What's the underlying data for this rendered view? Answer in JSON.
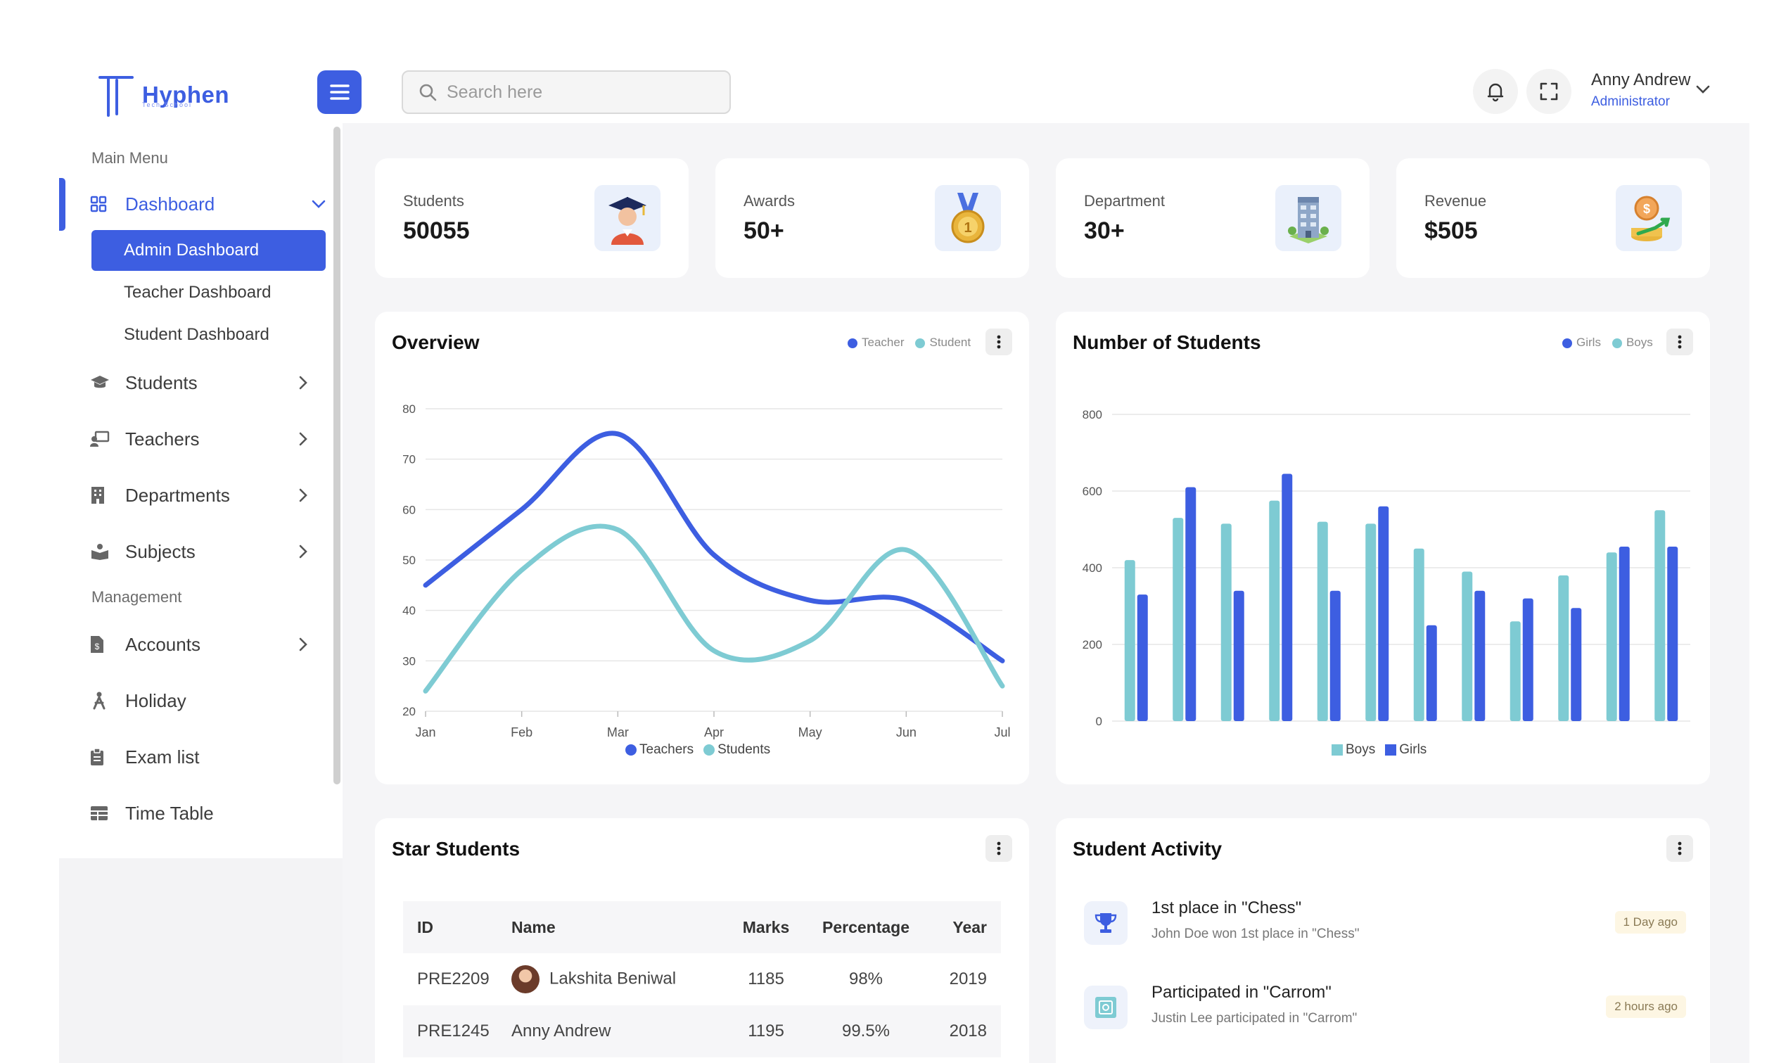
{
  "brand": {
    "name": "Hyphen",
    "tagline": "Tech School"
  },
  "search": {
    "placeholder": "Search here"
  },
  "user": {
    "name": "Anny Andrew",
    "role": "Administrator"
  },
  "sidebar": {
    "main_menu_label": "Main Menu",
    "management_label": "Management",
    "dashboard": {
      "label": "Dashboard",
      "subitems": [
        "Admin Dashboard",
        "Teacher Dashboard",
        "Student Dashboard"
      ]
    },
    "items": [
      {
        "label": "Students",
        "icon": "graduation-cap-icon"
      },
      {
        "label": "Teachers",
        "icon": "teacher-board-icon"
      },
      {
        "label": "Departments",
        "icon": "building-icon"
      },
      {
        "label": "Subjects",
        "icon": "book-reader-icon"
      }
    ],
    "management_items": [
      {
        "label": "Accounts",
        "icon": "invoice-icon"
      },
      {
        "label": "Holiday",
        "icon": "holiday-person-icon"
      },
      {
        "label": "Exam list",
        "icon": "clipboard-icon"
      },
      {
        "label": "Time Table",
        "icon": "table-grid-icon"
      }
    ]
  },
  "stats": [
    {
      "label": "Students",
      "value": "50055",
      "icon": "graduate-illustration-icon"
    },
    {
      "label": "Awards",
      "value": "50+",
      "icon": "medal-illustration-icon"
    },
    {
      "label": "Department",
      "value": "30+",
      "icon": "building-illustration-icon"
    },
    {
      "label": "Revenue",
      "value": "$505",
      "icon": "money-growth-illustration-icon"
    }
  ],
  "overview": {
    "title": "Overview",
    "legend_top": [
      "Teacher",
      "Student"
    ],
    "legend_bottom": [
      "Teachers",
      "Students"
    ]
  },
  "students_panel": {
    "title": "Number of Students",
    "legend_top": [
      "Girls",
      "Boys"
    ],
    "legend_bottom": [
      "Boys",
      "Girls"
    ]
  },
  "star_students": {
    "title": "Star Students",
    "columns": [
      "ID",
      "Name",
      "Marks",
      "Percentage",
      "Year"
    ],
    "rows": [
      {
        "id": "PRE2209",
        "name": "Lakshita Beniwal",
        "marks": "1185",
        "pct": "98%",
        "year": "2019"
      },
      {
        "id": "PRE1245",
        "name": "Anny Andrew",
        "marks": "1195",
        "pct": "99.5%",
        "year": "2018"
      }
    ]
  },
  "activity": {
    "title": "Student Activity",
    "items": [
      {
        "title": "1st place in \"Chess\"",
        "desc": "John Doe won 1st place in \"Chess\"",
        "time": "1 Day ago",
        "icon": "trophy-icon"
      },
      {
        "title": "Participated in \"Carrom\"",
        "desc": "Justin Lee participated in \"Carrom\"",
        "time": "2 hours ago",
        "icon": "carrom-board-icon"
      }
    ]
  },
  "colors": {
    "accent": "#3d5ee1",
    "teal": "#7ecbd3",
    "bg": "#f5f5f7"
  },
  "chart_data": [
    {
      "type": "line",
      "title": "Overview",
      "x": [
        "Jan",
        "Feb",
        "Mar",
        "Apr",
        "May",
        "Jun",
        "Jul"
      ],
      "ylim": [
        20,
        80
      ],
      "yticks": [
        20,
        30,
        40,
        50,
        60,
        70,
        80
      ],
      "grid": true,
      "legend": "bottom",
      "series": [
        {
          "name": "Teachers",
          "values": [
            45,
            60,
            75,
            51,
            42,
            42,
            30
          ],
          "color": "#3d5ee1"
        },
        {
          "name": "Students",
          "values": [
            24,
            48,
            56,
            32,
            34,
            52,
            25
          ],
          "color": "#7ecbd3"
        }
      ]
    },
    {
      "type": "bar",
      "title": "Number of Students",
      "categories": [
        "",
        "",
        "",
        "",
        "",
        "",
        "",
        "",
        "",
        "",
        "",
        ""
      ],
      "ylim": [
        0,
        800
      ],
      "yticks": [
        0,
        200,
        400,
        600,
        800
      ],
      "grid": true,
      "legend": "bottom",
      "series": [
        {
          "name": "Boys",
          "values": [
            420,
            530,
            515,
            575,
            520,
            515,
            450,
            390,
            260,
            380,
            440,
            550
          ],
          "color": "#7ecbd3"
        },
        {
          "name": "Girls",
          "values": [
            330,
            610,
            340,
            645,
            340,
            560,
            250,
            340,
            320,
            295,
            455,
            455
          ],
          "color": "#3d5ee1"
        }
      ]
    }
  ]
}
